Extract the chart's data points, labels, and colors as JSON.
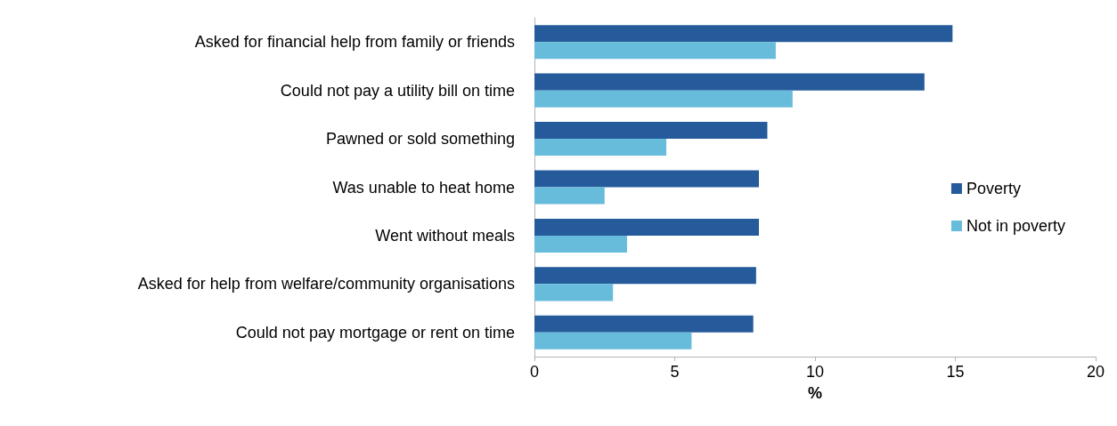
{
  "chart_data": {
    "type": "bar",
    "orientation": "horizontal",
    "xlabel": "%",
    "categories": [
      "Asked for financial help from family or friends",
      "Could not pay a utility bill on time",
      "Pawned or sold something",
      "Was unable to heat home",
      "Went without meals",
      "Asked for help from welfare/community organisations",
      "Could not pay mortgage or rent on time"
    ],
    "series": [
      {
        "name": "Poverty",
        "color": "#265b9b",
        "values": [
          14.9,
          13.9,
          8.3,
          8.0,
          8.0,
          7.9,
          7.8
        ]
      },
      {
        "name": "Not in poverty",
        "color": "#67bcdc",
        "values": [
          8.6,
          9.2,
          4.7,
          2.5,
          3.3,
          2.8,
          5.6
        ]
      }
    ],
    "xlim": [
      0,
      20
    ],
    "xticks": [
      0,
      5,
      10,
      15,
      20
    ],
    "grid": false,
    "legend": "right"
  }
}
